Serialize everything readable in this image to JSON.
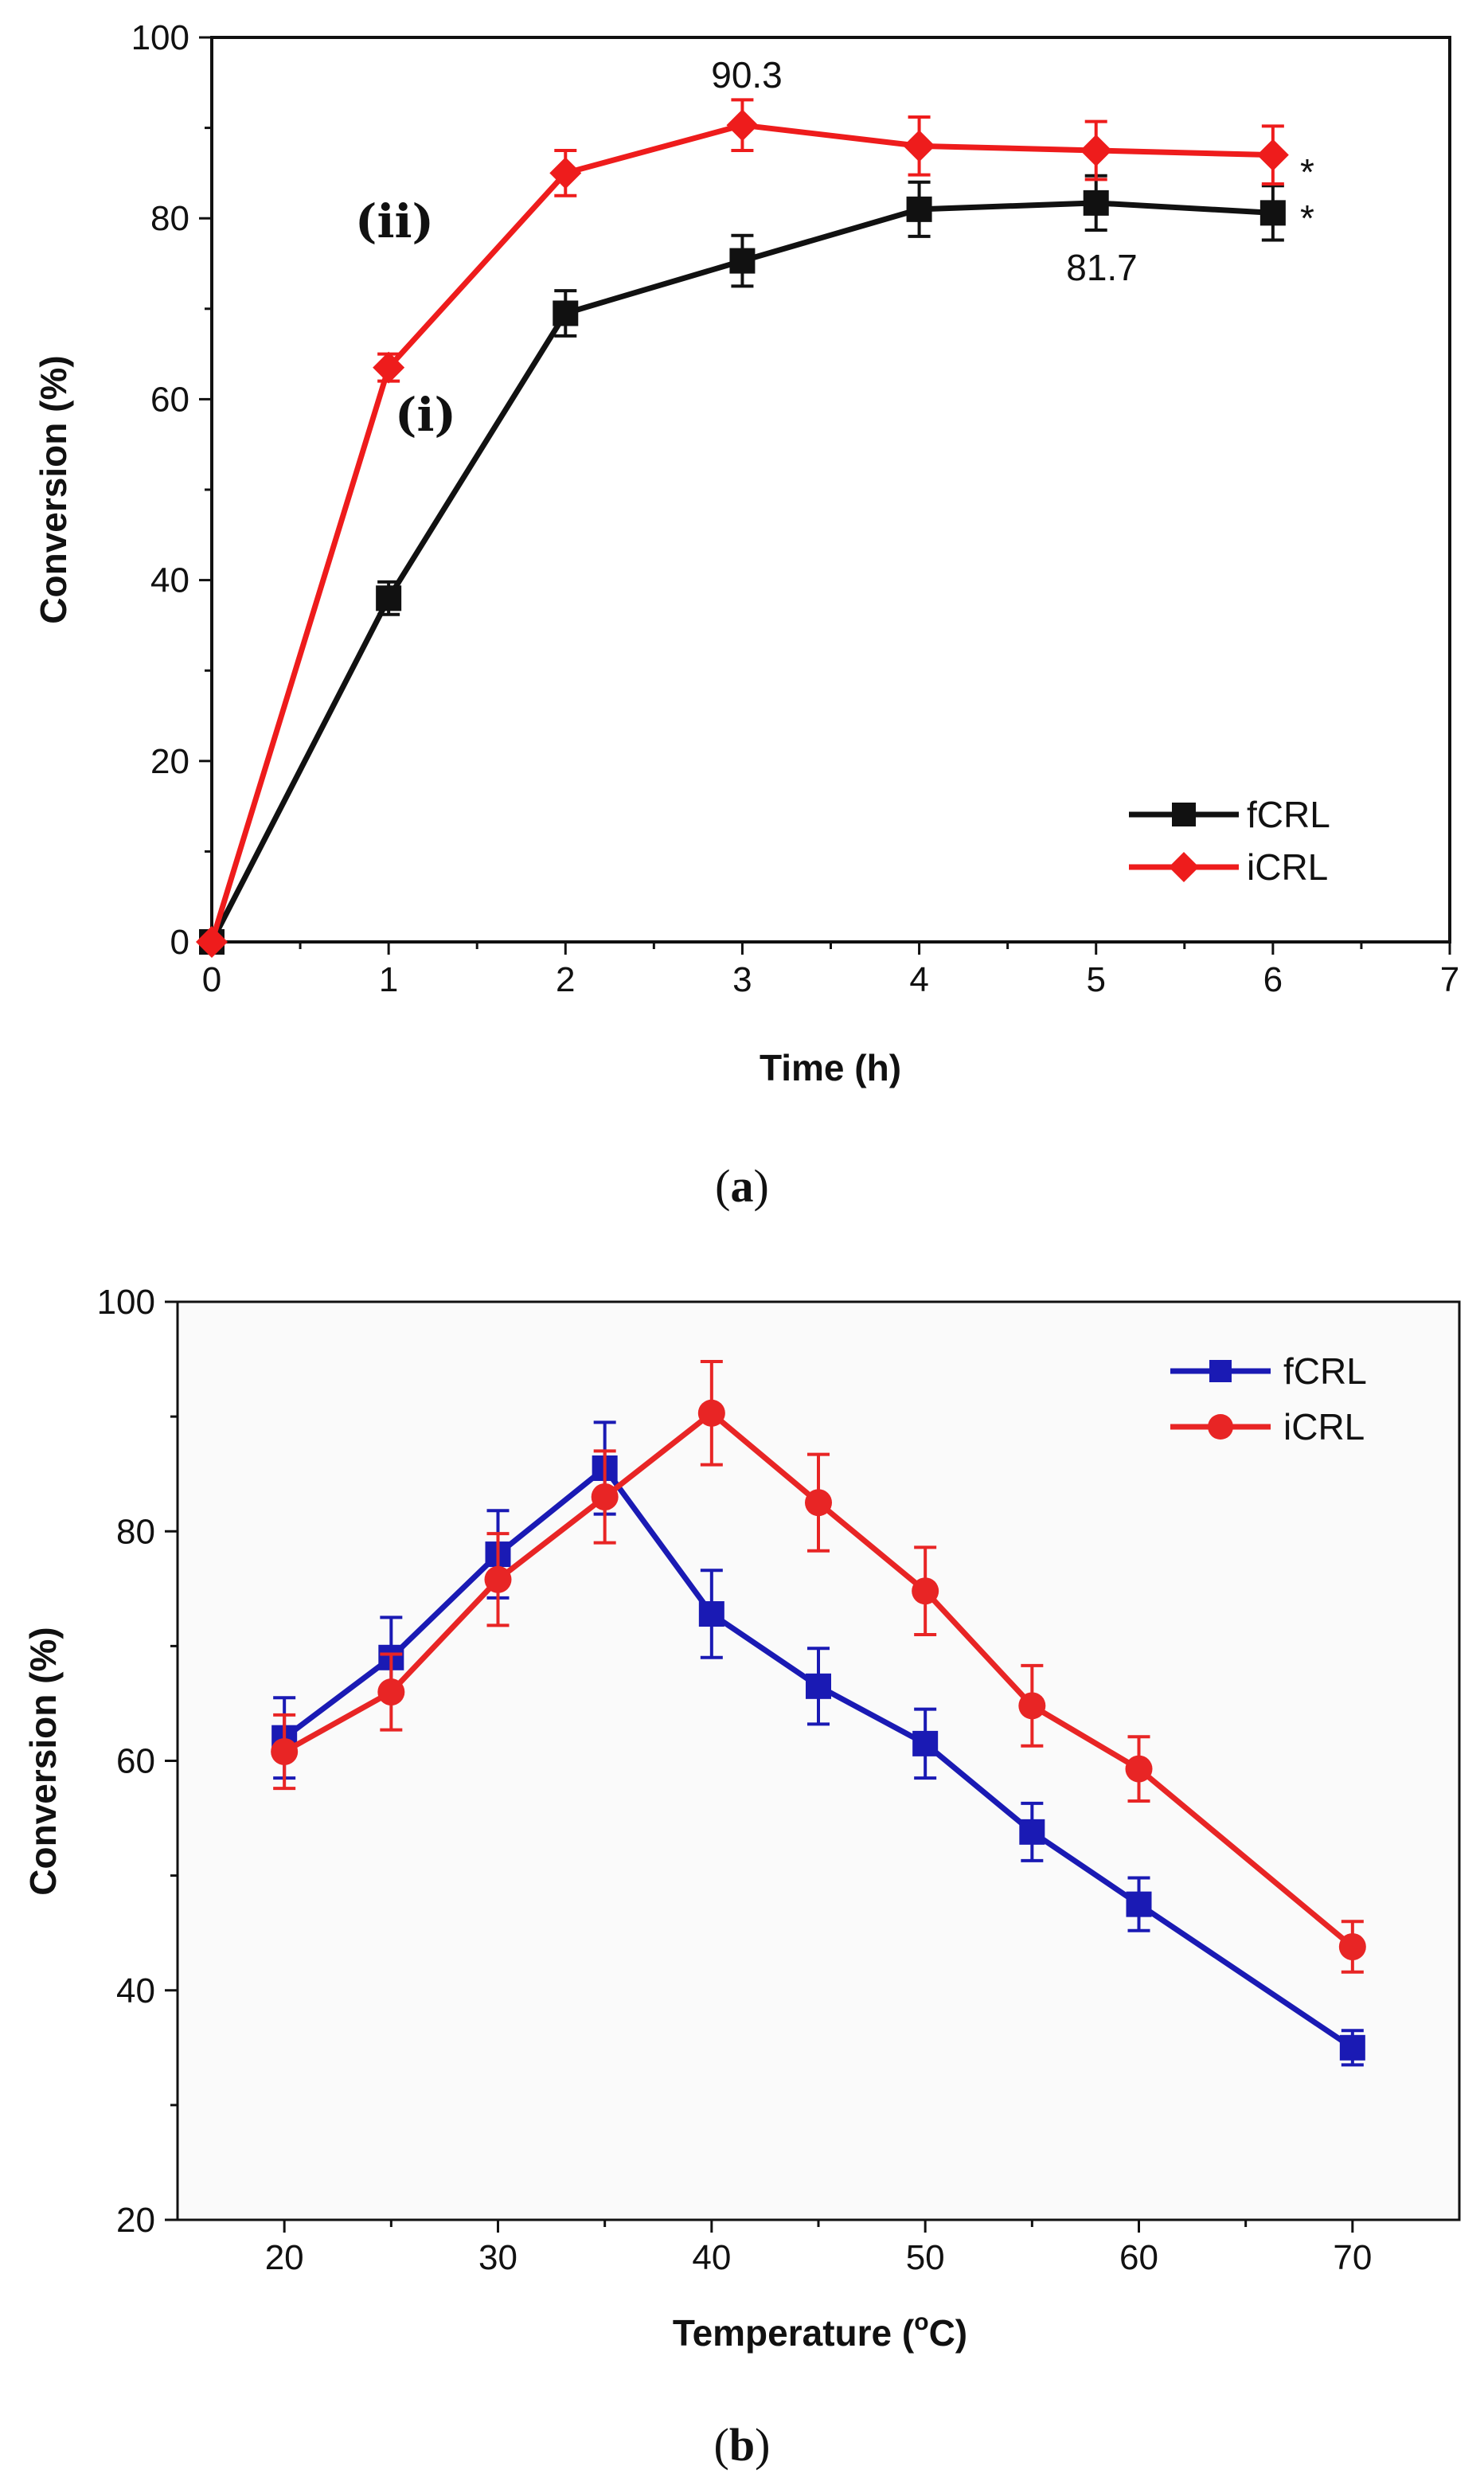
{
  "chart_data": [
    {
      "panel": "a",
      "type": "line",
      "xlabel": "Time (h)",
      "ylabel": "Conversion (%)",
      "xlim": [
        0,
        7
      ],
      "ylim": [
        0,
        100
      ],
      "xticks": [
        0,
        1,
        2,
        3,
        4,
        5,
        6,
        7
      ],
      "yticks": [
        0,
        20,
        40,
        60,
        80,
        100
      ],
      "legend_position": "bottom-right",
      "series": [
        {
          "name": "fCRL",
          "color": "#111111",
          "marker": "square",
          "x": [
            0,
            1,
            2,
            3,
            4,
            5,
            6
          ],
          "y": [
            0,
            38,
            69.5,
            75.3,
            81,
            81.7,
            80.6
          ],
          "error": [
            0,
            1.8,
            2.5,
            2.8,
            3,
            3,
            3
          ]
        },
        {
          "name": "iCRL",
          "color": "#ee1c1c",
          "marker": "diamond",
          "x": [
            0,
            1,
            2,
            3,
            4,
            5,
            6
          ],
          "y": [
            0,
            63.5,
            85,
            90.3,
            88,
            87.5,
            87
          ],
          "error": [
            0,
            1.5,
            2.5,
            2.8,
            3.2,
            3.2,
            3.2
          ]
        }
      ],
      "annotations": {
        "peak_icrl": "90.3",
        "peak_fcrl": "81.7",
        "star_icrl": "*",
        "star_fcrl": "*",
        "label_i": "(i)",
        "label_ii": "(ii)"
      }
    },
    {
      "panel": "b",
      "type": "line",
      "xlabel": "Temperature (",
      "xlabel_sup": "o",
      "xlabel_tail": "C)",
      "ylabel": "Conversion (%)",
      "xlim": [
        15,
        75
      ],
      "ylim": [
        20,
        100
      ],
      "xticks": [
        20,
        30,
        40,
        50,
        60,
        70
      ],
      "yticks": [
        20,
        40,
        60,
        80,
        100
      ],
      "legend_position": "top-right",
      "series": [
        {
          "name": "fCRL",
          "color": "#1a1ab4",
          "marker": "square",
          "x": [
            20,
            25,
            30,
            35,
            40,
            45,
            50,
            55,
            60,
            70
          ],
          "y": [
            62,
            69,
            78,
            85.5,
            72.8,
            66.5,
            61.5,
            53.8,
            47.5,
            35
          ],
          "error": [
            3.5,
            3.5,
            3.8,
            4,
            3.8,
            3.3,
            3,
            2.5,
            2.3,
            1.5
          ]
        },
        {
          "name": "iCRL",
          "color": "#e82525",
          "marker": "circle",
          "x": [
            20,
            25,
            30,
            35,
            40,
            45,
            50,
            55,
            60,
            70
          ],
          "y": [
            60.8,
            66,
            75.8,
            83,
            90.3,
            82.5,
            74.8,
            64.8,
            59.3,
            43.8
          ],
          "error": [
            3.2,
            3.3,
            4,
            4,
            4.5,
            4.2,
            3.8,
            3.5,
            2.8,
            2.2
          ]
        }
      ]
    }
  ],
  "captions": {
    "a": "a",
    "b": "b"
  }
}
